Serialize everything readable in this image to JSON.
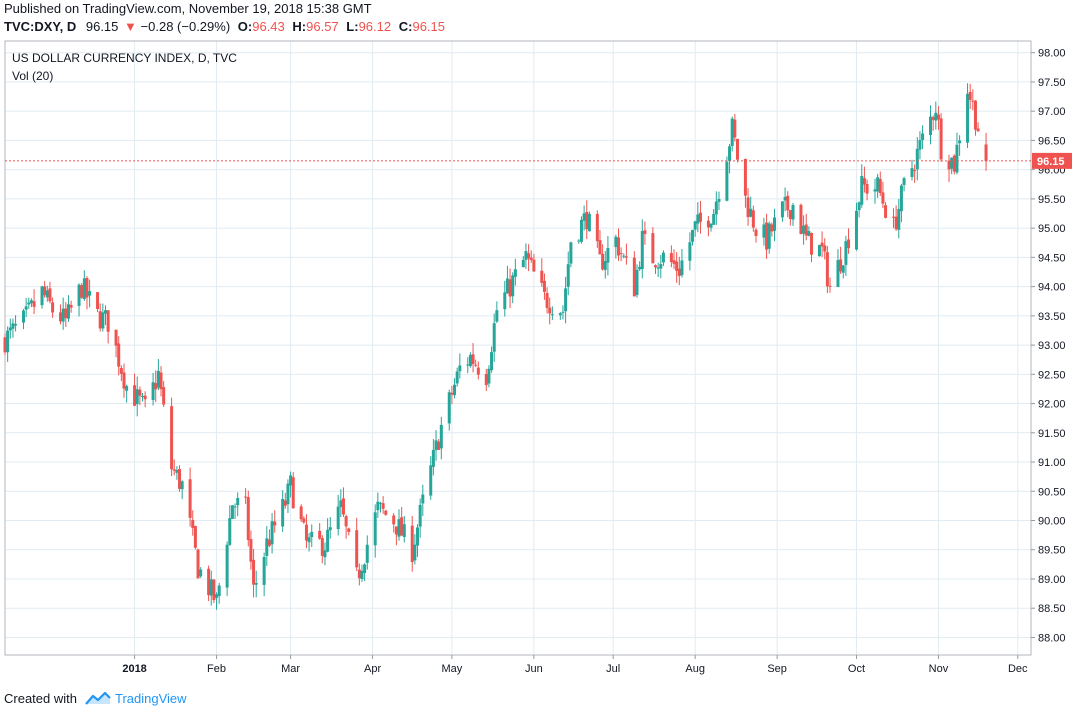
{
  "header": {
    "published": "Published on TradingView.com, November 19, 2018 15:38 GMT",
    "symbol": "TVC:DXY, D",
    "price": "96.15",
    "change": "−0.28 (−0.29%)",
    "o_label": "O:",
    "o_value": "96.43",
    "h_label": "H:",
    "h_value": "96.57",
    "l_label": "L:",
    "l_value": "96.12",
    "c_label": "C:",
    "c_value": "96.15"
  },
  "footer": {
    "created_with": "Created with",
    "brand": "TradingView"
  },
  "colors": {
    "up": "#26a69a",
    "down": "#ef5350",
    "grid": "#e1ecf2",
    "axis": "#999999",
    "price_line": "#ef5350"
  },
  "chart_data": {
    "type": "candlestick",
    "title": "US DOLLAR CURRENCY INDEX, D, TVC",
    "indicator": "Vol (20)",
    "ylim": [
      87.7,
      98.2
    ],
    "y_ticks": [
      "88.00",
      "88.50",
      "89.00",
      "89.50",
      "90.00",
      "90.50",
      "91.00",
      "91.50",
      "92.00",
      "92.50",
      "93.00",
      "93.50",
      "94.00",
      "94.50",
      "95.00",
      "95.50",
      "96.00",
      "96.50",
      "97.00",
      "97.50",
      "98.00"
    ],
    "x_ticks": [
      "2018",
      "Feb",
      "Mar",
      "Apr",
      "May",
      "Jun",
      "Jul",
      "Aug",
      "Sep",
      "Oct",
      "Nov",
      "Dec"
    ],
    "last_price": "96.15",
    "x_start": "2017-11-13",
    "close_anchors": [
      [
        "2017-11-13",
        93.1
      ],
      [
        "2017-11-20",
        93.4
      ],
      [
        "2017-11-27",
        93.9
      ],
      [
        "2017-12-01",
        93.6
      ],
      [
        "2017-12-06",
        93.4
      ],
      [
        "2017-12-12",
        94.0
      ],
      [
        "2017-12-18",
        93.5
      ],
      [
        "2017-12-22",
        93.4
      ],
      [
        "2017-12-29",
        92.3
      ],
      [
        "2018-01-05",
        91.9
      ],
      [
        "2018-01-10",
        92.5
      ],
      [
        "2018-01-15",
        90.9
      ],
      [
        "2018-01-19",
        90.6
      ],
      [
        "2018-01-25",
        89.2
      ],
      [
        "2018-02-01",
        88.6
      ],
      [
        "2018-02-07",
        90.3
      ],
      [
        "2018-02-12",
        90.2
      ],
      [
        "2018-02-15",
        88.8
      ],
      [
        "2018-02-20",
        89.6
      ],
      [
        "2018-02-27",
        90.3
      ],
      [
        "2018-03-01",
        90.6
      ],
      [
        "2018-03-07",
        89.6
      ],
      [
        "2018-03-14",
        89.6
      ],
      [
        "2018-03-20",
        90.2
      ],
      [
        "2018-03-26",
        89.0
      ],
      [
        "2018-04-03",
        90.2
      ],
      [
        "2018-04-09",
        90.0
      ],
      [
        "2018-04-16",
        89.5
      ],
      [
        "2018-04-20",
        90.3
      ],
      [
        "2018-04-27",
        91.6
      ],
      [
        "2018-05-04",
        92.6
      ],
      [
        "2018-05-08",
        92.8
      ],
      [
        "2018-05-14",
        92.5
      ],
      [
        "2018-05-18",
        93.6
      ],
      [
        "2018-05-29",
        94.5
      ],
      [
        "2018-06-05",
        93.8
      ],
      [
        "2018-06-12",
        93.6
      ],
      [
        "2018-06-15",
        94.8
      ],
      [
        "2018-06-21",
        95.2
      ],
      [
        "2018-06-26",
        94.4
      ],
      [
        "2018-07-02",
        94.8
      ],
      [
        "2018-07-09",
        94.0
      ],
      [
        "2018-07-12",
        94.8
      ],
      [
        "2018-07-16",
        94.5
      ],
      [
        "2018-07-20",
        94.5
      ],
      [
        "2018-07-26",
        94.3
      ],
      [
        "2018-08-01",
        95.0
      ],
      [
        "2018-08-08",
        95.3
      ],
      [
        "2018-08-15",
        96.7
      ],
      [
        "2018-08-20",
        95.5
      ],
      [
        "2018-08-24",
        95.0
      ],
      [
        "2018-08-28",
        94.8
      ],
      [
        "2018-09-03",
        95.3
      ],
      [
        "2018-09-07",
        95.4
      ],
      [
        "2018-09-12",
        94.8
      ],
      [
        "2018-09-18",
        94.6
      ],
      [
        "2018-09-21",
        94.0
      ],
      [
        "2018-09-27",
        94.7
      ],
      [
        "2018-10-03",
        95.7
      ],
      [
        "2018-10-09",
        95.7
      ],
      [
        "2018-10-15",
        95.0
      ],
      [
        "2018-10-19",
        95.7
      ],
      [
        "2018-10-25",
        96.4
      ],
      [
        "2018-10-31",
        97.1
      ],
      [
        "2018-11-02",
        96.4
      ],
      [
        "2018-11-07",
        96.1
      ],
      [
        "2018-11-12",
        97.4
      ],
      [
        "2018-11-14",
        97.1
      ],
      [
        "2018-11-19",
        96.15
      ]
    ]
  }
}
